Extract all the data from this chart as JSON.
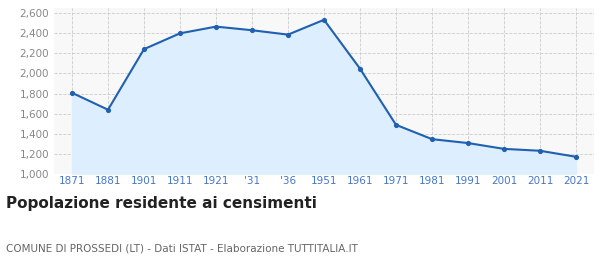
{
  "years": [
    1871,
    1881,
    1901,
    1911,
    1921,
    1931,
    1936,
    1951,
    1961,
    1971,
    1981,
    1991,
    2001,
    2011,
    2021
  ],
  "population": [
    1807,
    1638,
    2243,
    2401,
    2468,
    2432,
    2388,
    2536,
    2048,
    1487,
    1344,
    1305,
    1247,
    1228,
    1168
  ],
  "x_labels": [
    "1871",
    "1881",
    "1901",
    "1911",
    "1921",
    "'31",
    "'36",
    "1951",
    "1961",
    "1971",
    "1981",
    "1991",
    "2001",
    "2011",
    "2021"
  ],
  "ylim": [
    1000,
    2650
  ],
  "yticks": [
    1000,
    1200,
    1400,
    1600,
    1800,
    2000,
    2200,
    2400,
    2600
  ],
  "line_color": "#2060b0",
  "fill_color": "#ddeeff",
  "marker_color": "#2060b0",
  "bg_color": "#ffffff",
  "plot_bg_color": "#f8f8f8",
  "grid_color": "#cccccc",
  "x_tick_color": "#4477cc",
  "y_tick_color": "#888888",
  "title": "Popolazione residente ai censimenti",
  "subtitle": "COMUNE DI PROSSEDI (LT) - Dati ISTAT - Elaborazione TUTTITALIA.IT",
  "title_fontsize": 11,
  "subtitle_fontsize": 7.5,
  "tick_fontsize": 7.5
}
